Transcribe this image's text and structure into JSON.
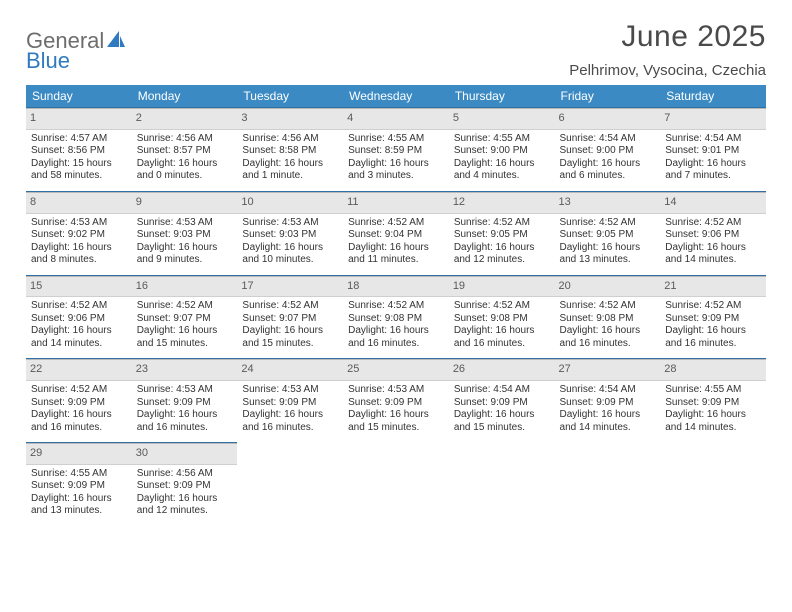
{
  "logo": {
    "word1": "General",
    "word2": "Blue"
  },
  "title": "June 2025",
  "location": "Pelhrimov, Vysocina, Czechia",
  "dows": [
    "Sunday",
    "Monday",
    "Tuesday",
    "Wednesday",
    "Thursday",
    "Friday",
    "Saturday"
  ],
  "header_bg": "#3b8ac4",
  "header_fg": "#ffffff",
  "dayhead_bg": "#e7e7e7",
  "rule_color": "#2f6fa6",
  "weeks": [
    [
      {
        "n": "1",
        "sr": "4:57 AM",
        "ss": "8:56 PM",
        "dl": "15 hours and 58 minutes."
      },
      {
        "n": "2",
        "sr": "4:56 AM",
        "ss": "8:57 PM",
        "dl": "16 hours and 0 minutes."
      },
      {
        "n": "3",
        "sr": "4:56 AM",
        "ss": "8:58 PM",
        "dl": "16 hours and 1 minute."
      },
      {
        "n": "4",
        "sr": "4:55 AM",
        "ss": "8:59 PM",
        "dl": "16 hours and 3 minutes."
      },
      {
        "n": "5",
        "sr": "4:55 AM",
        "ss": "9:00 PM",
        "dl": "16 hours and 4 minutes."
      },
      {
        "n": "6",
        "sr": "4:54 AM",
        "ss": "9:00 PM",
        "dl": "16 hours and 6 minutes."
      },
      {
        "n": "7",
        "sr": "4:54 AM",
        "ss": "9:01 PM",
        "dl": "16 hours and 7 minutes."
      }
    ],
    [
      {
        "n": "8",
        "sr": "4:53 AM",
        "ss": "9:02 PM",
        "dl": "16 hours and 8 minutes."
      },
      {
        "n": "9",
        "sr": "4:53 AM",
        "ss": "9:03 PM",
        "dl": "16 hours and 9 minutes."
      },
      {
        "n": "10",
        "sr": "4:53 AM",
        "ss": "9:03 PM",
        "dl": "16 hours and 10 minutes."
      },
      {
        "n": "11",
        "sr": "4:52 AM",
        "ss": "9:04 PM",
        "dl": "16 hours and 11 minutes."
      },
      {
        "n": "12",
        "sr": "4:52 AM",
        "ss": "9:05 PM",
        "dl": "16 hours and 12 minutes."
      },
      {
        "n": "13",
        "sr": "4:52 AM",
        "ss": "9:05 PM",
        "dl": "16 hours and 13 minutes."
      },
      {
        "n": "14",
        "sr": "4:52 AM",
        "ss": "9:06 PM",
        "dl": "16 hours and 14 minutes."
      }
    ],
    [
      {
        "n": "15",
        "sr": "4:52 AM",
        "ss": "9:06 PM",
        "dl": "16 hours and 14 minutes."
      },
      {
        "n": "16",
        "sr": "4:52 AM",
        "ss": "9:07 PM",
        "dl": "16 hours and 15 minutes."
      },
      {
        "n": "17",
        "sr": "4:52 AM",
        "ss": "9:07 PM",
        "dl": "16 hours and 15 minutes."
      },
      {
        "n": "18",
        "sr": "4:52 AM",
        "ss": "9:08 PM",
        "dl": "16 hours and 16 minutes."
      },
      {
        "n": "19",
        "sr": "4:52 AM",
        "ss": "9:08 PM",
        "dl": "16 hours and 16 minutes."
      },
      {
        "n": "20",
        "sr": "4:52 AM",
        "ss": "9:08 PM",
        "dl": "16 hours and 16 minutes."
      },
      {
        "n": "21",
        "sr": "4:52 AM",
        "ss": "9:09 PM",
        "dl": "16 hours and 16 minutes."
      }
    ],
    [
      {
        "n": "22",
        "sr": "4:52 AM",
        "ss": "9:09 PM",
        "dl": "16 hours and 16 minutes."
      },
      {
        "n": "23",
        "sr": "4:53 AM",
        "ss": "9:09 PM",
        "dl": "16 hours and 16 minutes."
      },
      {
        "n": "24",
        "sr": "4:53 AM",
        "ss": "9:09 PM",
        "dl": "16 hours and 16 minutes."
      },
      {
        "n": "25",
        "sr": "4:53 AM",
        "ss": "9:09 PM",
        "dl": "16 hours and 15 minutes."
      },
      {
        "n": "26",
        "sr": "4:54 AM",
        "ss": "9:09 PM",
        "dl": "16 hours and 15 minutes."
      },
      {
        "n": "27",
        "sr": "4:54 AM",
        "ss": "9:09 PM",
        "dl": "16 hours and 14 minutes."
      },
      {
        "n": "28",
        "sr": "4:55 AM",
        "ss": "9:09 PM",
        "dl": "16 hours and 14 minutes."
      }
    ],
    [
      {
        "n": "29",
        "sr": "4:55 AM",
        "ss": "9:09 PM",
        "dl": "16 hours and 13 minutes."
      },
      {
        "n": "30",
        "sr": "4:56 AM",
        "ss": "9:09 PM",
        "dl": "16 hours and 12 minutes."
      },
      null,
      null,
      null,
      null,
      null
    ]
  ],
  "labels": {
    "sunrise": "Sunrise: ",
    "sunset": "Sunset: ",
    "daylight": "Daylight: "
  }
}
